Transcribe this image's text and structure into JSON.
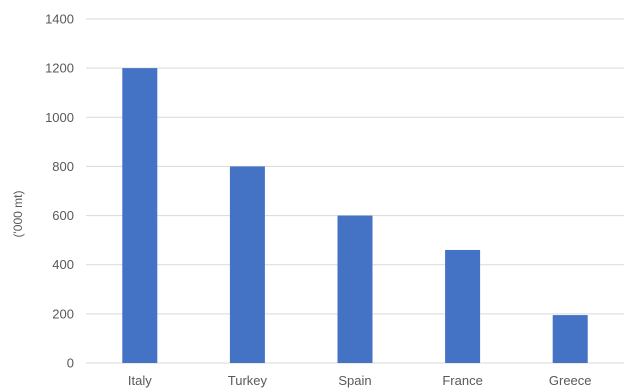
{
  "chart_data": {
    "type": "bar",
    "categories": [
      "Italy",
      "Turkey",
      "Spain",
      "France",
      "Greece"
    ],
    "values": [
      1200,
      800,
      600,
      460,
      195
    ],
    "ylabel": "('000 mt)",
    "ylim": [
      0,
      1400
    ],
    "yticks": [
      "0",
      "200",
      "400",
      "600",
      "800",
      "1000",
      "1200",
      "1400"
    ],
    "grid": true,
    "bar_color": "#4472C4",
    "grid_color": "#D9D9D9"
  }
}
